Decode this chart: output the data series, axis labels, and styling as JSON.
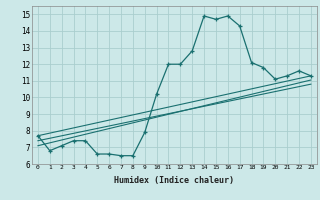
{
  "background_color": "#cce8e8",
  "grid_color": "#aacece",
  "line_color": "#1a7070",
  "xlabel": "Humidex (Indice chaleur)",
  "xlim": [
    -0.5,
    23.5
  ],
  "ylim": [
    6,
    15.5
  ],
  "yticks": [
    6,
    7,
    8,
    9,
    10,
    11,
    12,
    13,
    14,
    15
  ],
  "xticks": [
    0,
    1,
    2,
    3,
    4,
    5,
    6,
    7,
    8,
    9,
    10,
    11,
    12,
    13,
    14,
    15,
    16,
    17,
    18,
    19,
    20,
    21,
    22,
    23
  ],
  "main_curve_x": [
    0,
    1,
    2,
    3,
    4,
    5,
    6,
    7,
    8,
    9,
    10,
    11,
    12,
    13,
    14,
    15,
    16,
    17,
    18,
    19,
    20,
    21,
    22,
    23
  ],
  "main_curve_y": [
    7.7,
    6.8,
    7.1,
    7.4,
    7.4,
    6.6,
    6.6,
    6.5,
    6.5,
    7.9,
    10.2,
    12.0,
    12.0,
    12.8,
    14.9,
    14.7,
    14.9,
    14.3,
    12.1,
    11.8,
    11.1,
    11.3,
    11.6,
    11.3
  ],
  "line1_x": [
    0,
    23
  ],
  "line1_y": [
    7.7,
    11.3
  ],
  "line2_x": [
    0,
    23
  ],
  "line2_y": [
    7.4,
    10.8
  ],
  "line3_x": [
    0,
    23
  ],
  "line3_y": [
    7.1,
    11.05
  ]
}
